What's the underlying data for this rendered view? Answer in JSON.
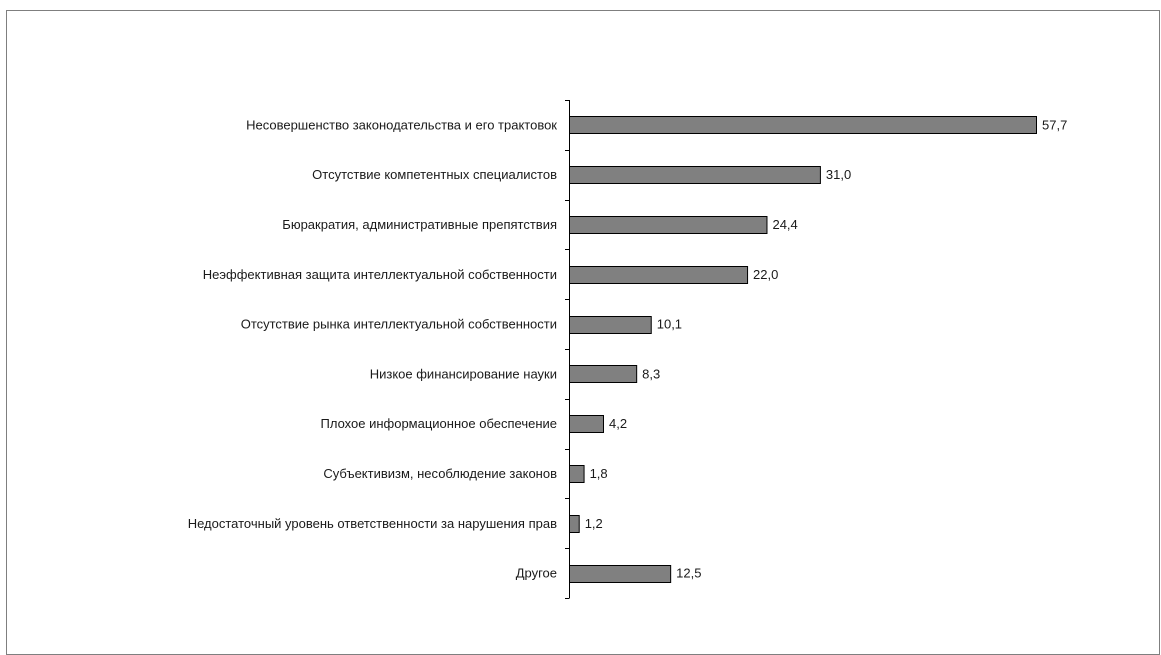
{
  "chart_data": {
    "type": "bar",
    "orientation": "horizontal",
    "title": "",
    "xlabel": "",
    "ylabel": "",
    "xlim": [
      0,
      57.7
    ],
    "grid": false,
    "legend": "none",
    "bar_color": "#808080",
    "categories": [
      "Несовершенство законодательства и его трактовок",
      "Отсутствие компетентных специалистов",
      "Бюракратия, административные препятствия",
      "Неэффективная защита интеллектуальной собственности",
      "Отсутствие рынка интеллектуальной собственности",
      "Низкое финансирование науки",
      "Плохое информационное обеспечение",
      "Субъективизм, несоблюдение законов",
      "Недостаточный уровень ответственности за нарушения прав",
      "Другое"
    ],
    "values": [
      57.7,
      31.0,
      24.4,
      22.0,
      10.1,
      8.3,
      4.2,
      1.8,
      1.2,
      12.5
    ],
    "value_labels": [
      "57,7",
      "31,0",
      "24,4",
      "22,0",
      "10,1",
      "8,3",
      "4,2",
      "1,8",
      "1,2",
      "12,5"
    ]
  }
}
